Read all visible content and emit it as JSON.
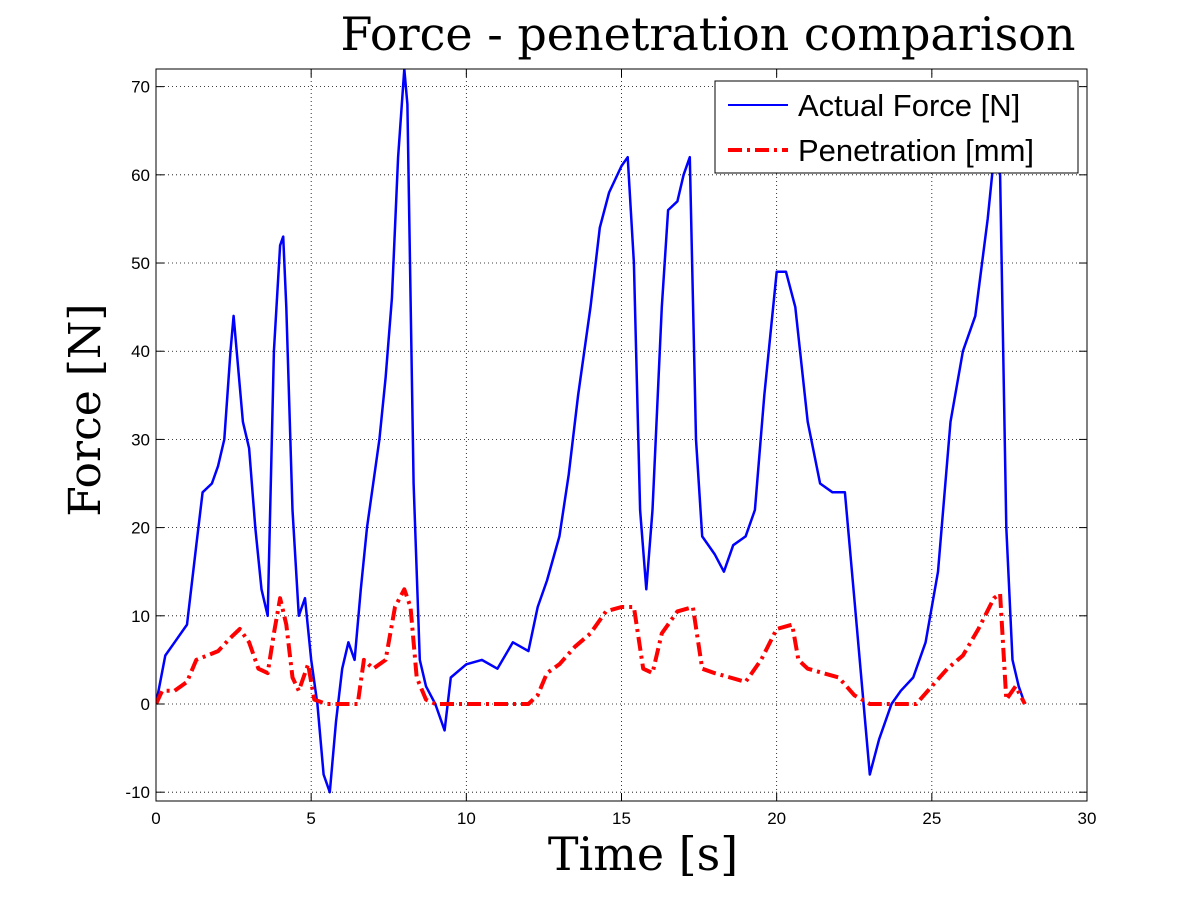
{
  "chart_data": {
    "type": "line",
    "title": "Force - penetration comparison",
    "xlabel": "Time [s]",
    "ylabel": "Force [N]",
    "xlim": [
      0,
      30
    ],
    "ylim": [
      -11,
      72
    ],
    "xticks": [
      0,
      5,
      10,
      15,
      20,
      25,
      30
    ],
    "yticks": [
      -10,
      0,
      10,
      20,
      30,
      40,
      50,
      60,
      70
    ],
    "grid": true,
    "legend": "top-right",
    "series": [
      {
        "name": "Actual Force [N]",
        "color": "#0000ff",
        "style": "solid",
        "points": [
          [
            0.0,
            0.0
          ],
          [
            0.3,
            5.5
          ],
          [
            0.6,
            7.0
          ],
          [
            1.0,
            9.0
          ],
          [
            1.3,
            18.0
          ],
          [
            1.5,
            24.0
          ],
          [
            1.8,
            25.0
          ],
          [
            2.0,
            27.0
          ],
          [
            2.2,
            30.0
          ],
          [
            2.4,
            40.0
          ],
          [
            2.5,
            44.0
          ],
          [
            2.6,
            40.0
          ],
          [
            2.8,
            32.0
          ],
          [
            3.0,
            29.0
          ],
          [
            3.2,
            20.0
          ],
          [
            3.4,
            13.0
          ],
          [
            3.6,
            10.0
          ],
          [
            3.8,
            40.0
          ],
          [
            4.0,
            52.0
          ],
          [
            4.1,
            53.0
          ],
          [
            4.2,
            45.0
          ],
          [
            4.4,
            22.0
          ],
          [
            4.6,
            10.0
          ],
          [
            4.8,
            12.0
          ],
          [
            5.0,
            5.0
          ],
          [
            5.2,
            0.0
          ],
          [
            5.4,
            -8.0
          ],
          [
            5.6,
            -10.0
          ],
          [
            5.8,
            -2.0
          ],
          [
            6.0,
            4.0
          ],
          [
            6.2,
            7.0
          ],
          [
            6.4,
            5.0
          ],
          [
            6.6,
            13.0
          ],
          [
            6.8,
            20.0
          ],
          [
            7.0,
            25.0
          ],
          [
            7.2,
            30.0
          ],
          [
            7.4,
            37.0
          ],
          [
            7.6,
            46.0
          ],
          [
            7.8,
            62.0
          ],
          [
            8.0,
            72.0
          ],
          [
            8.1,
            68.0
          ],
          [
            8.3,
            25.0
          ],
          [
            8.5,
            5.0
          ],
          [
            8.7,
            2.0
          ],
          [
            9.0,
            0.0
          ],
          [
            9.3,
            -3.0
          ],
          [
            9.5,
            3.0
          ],
          [
            10.0,
            4.5
          ],
          [
            10.5,
            5.0
          ],
          [
            11.0,
            4.0
          ],
          [
            11.5,
            7.0
          ],
          [
            12.0,
            6.0
          ],
          [
            12.3,
            11.0
          ],
          [
            12.6,
            14.0
          ],
          [
            13.0,
            19.0
          ],
          [
            13.3,
            26.0
          ],
          [
            13.6,
            35.0
          ],
          [
            14.0,
            45.0
          ],
          [
            14.3,
            54.0
          ],
          [
            14.6,
            58.0
          ],
          [
            15.0,
            61.0
          ],
          [
            15.2,
            62.0
          ],
          [
            15.4,
            50.0
          ],
          [
            15.6,
            22.0
          ],
          [
            15.8,
            13.0
          ],
          [
            16.0,
            22.0
          ],
          [
            16.3,
            45.0
          ],
          [
            16.5,
            56.0
          ],
          [
            16.8,
            57.0
          ],
          [
            17.0,
            60.0
          ],
          [
            17.2,
            62.0
          ],
          [
            17.4,
            30.0
          ],
          [
            17.6,
            19.0
          ],
          [
            18.0,
            17.0
          ],
          [
            18.3,
            15.0
          ],
          [
            18.6,
            18.0
          ],
          [
            19.0,
            19.0
          ],
          [
            19.3,
            22.0
          ],
          [
            19.6,
            35.0
          ],
          [
            20.0,
            49.0
          ],
          [
            20.3,
            49.0
          ],
          [
            20.6,
            45.0
          ],
          [
            21.0,
            32.0
          ],
          [
            21.4,
            25.0
          ],
          [
            21.8,
            24.0
          ],
          [
            22.2,
            24.0
          ],
          [
            22.5,
            12.0
          ],
          [
            22.8,
            0.0
          ],
          [
            23.0,
            -8.0
          ],
          [
            23.3,
            -4.0
          ],
          [
            23.7,
            0.0
          ],
          [
            24.0,
            1.5
          ],
          [
            24.4,
            3.0
          ],
          [
            24.8,
            7.0
          ],
          [
            25.2,
            15.0
          ],
          [
            25.6,
            32.0
          ],
          [
            26.0,
            40.0
          ],
          [
            26.4,
            44.0
          ],
          [
            26.8,
            55.0
          ],
          [
            27.0,
            62.0
          ],
          [
            27.2,
            60.0
          ],
          [
            27.4,
            20.0
          ],
          [
            27.6,
            5.0
          ],
          [
            27.8,
            2.0
          ],
          [
            28.0,
            0.0
          ]
        ]
      },
      {
        "name": "Penetration [mm]",
        "color": "#ff0000",
        "style": "dashdot",
        "points": [
          [
            0.0,
            0.0
          ],
          [
            0.2,
            1.5
          ],
          [
            0.6,
            1.5
          ],
          [
            1.0,
            2.5
          ],
          [
            1.3,
            5.0
          ],
          [
            2.0,
            6.0
          ],
          [
            2.4,
            7.5
          ],
          [
            2.7,
            8.5
          ],
          [
            3.0,
            7.0
          ],
          [
            3.3,
            4.0
          ],
          [
            3.6,
            3.5
          ],
          [
            3.8,
            8.0
          ],
          [
            4.0,
            12.0
          ],
          [
            4.2,
            9.0
          ],
          [
            4.4,
            3.0
          ],
          [
            4.6,
            1.5
          ],
          [
            4.9,
            4.5
          ],
          [
            5.1,
            0.5
          ],
          [
            5.5,
            0.0
          ],
          [
            6.5,
            0.0
          ],
          [
            6.7,
            5.0
          ],
          [
            7.0,
            4.0
          ],
          [
            7.4,
            5.0
          ],
          [
            7.7,
            11.0
          ],
          [
            8.0,
            13.0
          ],
          [
            8.2,
            11.0
          ],
          [
            8.4,
            3.0
          ],
          [
            8.7,
            0.5
          ],
          [
            9.0,
            0.0
          ],
          [
            12.0,
            0.0
          ],
          [
            12.3,
            1.0
          ],
          [
            12.6,
            3.5
          ],
          [
            13.0,
            4.5
          ],
          [
            13.5,
            6.5
          ],
          [
            14.0,
            8.0
          ],
          [
            14.5,
            10.5
          ],
          [
            15.0,
            11.0
          ],
          [
            15.4,
            11.0
          ],
          [
            15.7,
            4.0
          ],
          [
            16.0,
            3.5
          ],
          [
            16.3,
            8.0
          ],
          [
            16.8,
            10.5
          ],
          [
            17.3,
            11.0
          ],
          [
            17.6,
            4.0
          ],
          [
            18.0,
            3.5
          ],
          [
            18.5,
            3.0
          ],
          [
            19.0,
            2.5
          ],
          [
            19.5,
            5.0
          ],
          [
            20.0,
            8.5
          ],
          [
            20.5,
            9.0
          ],
          [
            20.7,
            5.0
          ],
          [
            21.0,
            4.0
          ],
          [
            21.5,
            3.5
          ],
          [
            22.0,
            3.0
          ],
          [
            22.5,
            1.0
          ],
          [
            23.0,
            0.0
          ],
          [
            24.5,
            0.0
          ],
          [
            25.0,
            2.0
          ],
          [
            25.5,
            4.0
          ],
          [
            26.0,
            5.5
          ],
          [
            26.5,
            8.5
          ],
          [
            27.0,
            12.0
          ],
          [
            27.2,
            12.5
          ],
          [
            27.4,
            0.5
          ],
          [
            27.7,
            2.0
          ],
          [
            28.0,
            0.0
          ]
        ]
      }
    ]
  }
}
